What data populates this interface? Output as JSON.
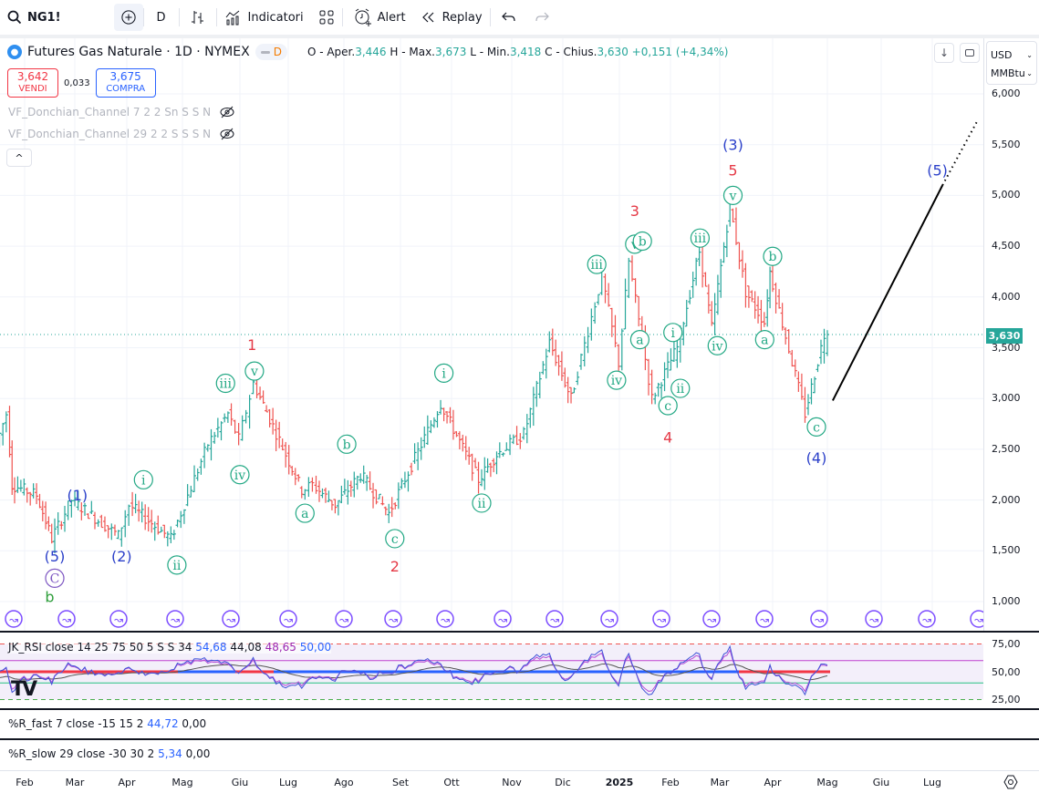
{
  "toolbar": {
    "symbol": "NG1!",
    "interval": "D",
    "indicators_label": "Indicatori",
    "alert_label": "Alert",
    "replay_label": "Replay",
    "icons": [
      "search-icon",
      "add-symbol-icon",
      "bar-style-icon",
      "indicators-icon",
      "layouts-icon",
      "alert-icon",
      "replay-icon",
      "undo-icon",
      "redo-icon"
    ]
  },
  "legend": {
    "title": "Futures Gas Naturale · 1D · NYMEX",
    "badge": "D",
    "open_label": "O - Aper.",
    "open": "3,446",
    "high_label": "H - Max.",
    "high": "3,673",
    "low_label": "L - Min.",
    "low": "3,418",
    "close_label": "C - Chius.",
    "close": "3,630",
    "change": "+0,151 (+4,34%)"
  },
  "trade": {
    "sell_price": "3,642",
    "sell_label": "VENDI",
    "spread": "0,033",
    "buy_price": "3,675",
    "buy_label": "COMPRA"
  },
  "indicators_main": [
    {
      "label": "VF_Donchian_Channel 7 2 2 Sn S S N",
      "visible": false
    },
    {
      "label": "VF_Donchian_Channel 29 2 2 S S S N",
      "visible": false
    }
  ],
  "price_axis": {
    "currency": "USD",
    "unit": "MMBtu",
    "ticks": [
      "6,000",
      "5,500",
      "5,000",
      "4,500",
      "4,000",
      "3,500",
      "3,000",
      "2,500",
      "2,000",
      "1,500",
      "1,000"
    ],
    "last_price": "3,630"
  },
  "time_axis": [
    "Feb",
    "Mar",
    "Apr",
    "Mag",
    "Giu",
    "Lug",
    "Ago",
    "Set",
    "Ott",
    "Nov",
    "Dic",
    "2025",
    "Feb",
    "Mar",
    "Apr",
    "Mag",
    "Giu",
    "Lug"
  ],
  "rsi": {
    "label": "JK_RSI close 14 25 75 50 5 S S 34",
    "v1": "54,68",
    "v2": "44,08",
    "v3": "48,65",
    "v4": "50,00",
    "ticks": [
      "75,00",
      "50,00",
      "25,00"
    ]
  },
  "wr_fast": {
    "label": "%R_fast 7 close -15 15 2",
    "v1": "44,72",
    "v2": "0,00"
  },
  "wr_slow": {
    "label": "%R_slow 29 close -30 30 2",
    "v1": "5,34",
    "v2": "0,00"
  },
  "chart_data": {
    "type": "ohlc",
    "title": "Futures Gas Naturale · 1D · NYMEX",
    "ylim": [
      1000,
      6000
    ],
    "x_months": [
      "Feb",
      "Mar",
      "Apr",
      "Mag",
      "Giu",
      "Lug",
      "Ago",
      "Set",
      "Ott",
      "Nov",
      "Dic",
      "2025",
      "Feb",
      "Mar",
      "Apr",
      "Mag"
    ],
    "price_path": [
      {
        "m": -0.5,
        "p": 2.55
      },
      {
        "m": -0.3,
        "p": 2.85
      },
      {
        "m": -0.2,
        "p": 2.15
      },
      {
        "m": 0.3,
        "p": 2.05
      },
      {
        "m": 0.6,
        "p": 1.62
      },
      {
        "m": 1.0,
        "p": 2.0
      },
      {
        "m": 1.9,
        "p": 1.65
      },
      {
        "m": 2.1,
        "p": 1.95
      },
      {
        "m": 2.85,
        "p": 1.62
      },
      {
        "m": 3.5,
        "p": 2.55
      },
      {
        "m": 3.85,
        "p": 2.85
      },
      {
        "m": 4.05,
        "p": 2.6
      },
      {
        "m": 4.35,
        "p": 3.15
      },
      {
        "m": 5.3,
        "p": 2.1
      },
      {
        "m": 5.5,
        "p": 2.15
      },
      {
        "m": 5.9,
        "p": 1.95
      },
      {
        "m": 6.35,
        "p": 2.25
      },
      {
        "m": 6.85,
        "p": 1.87
      },
      {
        "m": 7.85,
        "p": 2.95
      },
      {
        "m": 8.5,
        "p": 2.2
      },
      {
        "m": 8.8,
        "p": 2.45
      },
      {
        "m": 9.3,
        "p": 2.65
      },
      {
        "m": 9.8,
        "p": 3.55
      },
      {
        "m": 10.2,
        "p": 3.0
      },
      {
        "m": 10.75,
        "p": 4.2
      },
      {
        "m": 11.05,
        "p": 3.35
      },
      {
        "m": 11.25,
        "p": 4.35
      },
      {
        "m": 11.7,
        "p": 3.0
      },
      {
        "m": 12.2,
        "p": 3.5
      },
      {
        "m": 12.65,
        "p": 4.45
      },
      {
        "m": 12.9,
        "p": 3.7
      },
      {
        "m": 13.25,
        "p": 4.9
      },
      {
        "m": 13.55,
        "p": 4.05
      },
      {
        "m": 13.9,
        "p": 3.75
      },
      {
        "m": 14.0,
        "p": 4.25
      },
      {
        "m": 14.65,
        "p": 2.85
      },
      {
        "m": 15.0,
        "p": 3.63
      }
    ],
    "last": {
      "open": 3.446,
      "high": 3.673,
      "low": 3.418,
      "close": 3.63
    },
    "wave_labels": [
      {
        "text": "(5)",
        "m": 0.6,
        "p": 1.45,
        "style": "blue"
      },
      {
        "text": "C",
        "m": 0.6,
        "p": 1.23,
        "style": "purple-circle"
      },
      {
        "text": "b",
        "m": 0.5,
        "p": 1.05,
        "style": "green"
      },
      {
        "text": "(1)",
        "m": 1.05,
        "p": 2.05,
        "style": "blue"
      },
      {
        "text": "(2)",
        "m": 1.9,
        "p": 1.45,
        "style": "blue"
      },
      {
        "text": "i",
        "m": 2.3,
        "p": 2.2,
        "style": "green-circle"
      },
      {
        "text": "ii",
        "m": 2.9,
        "p": 1.36,
        "style": "green-circle"
      },
      {
        "text": "iii",
        "m": 3.75,
        "p": 3.15,
        "style": "green-circle"
      },
      {
        "text": "iv",
        "m": 4.0,
        "p": 2.25,
        "style": "green-circle"
      },
      {
        "text": "v",
        "m": 4.3,
        "p": 3.27,
        "style": "green-circle"
      },
      {
        "text": "1",
        "m": 4.25,
        "p": 3.53,
        "style": "red"
      },
      {
        "text": "a",
        "m": 5.3,
        "p": 1.87,
        "style": "green-circle"
      },
      {
        "text": "b",
        "m": 6.05,
        "p": 2.55,
        "style": "green-circle"
      },
      {
        "text": "c",
        "m": 6.9,
        "p": 1.62,
        "style": "green-circle"
      },
      {
        "text": "2",
        "m": 6.9,
        "p": 1.35,
        "style": "red"
      },
      {
        "text": "i",
        "m": 7.85,
        "p": 3.25,
        "style": "green-circle"
      },
      {
        "text": "ii",
        "m": 8.5,
        "p": 1.97,
        "style": "green-circle"
      },
      {
        "text": "iii",
        "m": 10.6,
        "p": 4.32,
        "style": "green-circle"
      },
      {
        "text": "iv",
        "m": 10.95,
        "p": 3.18,
        "style": "green-circle"
      },
      {
        "text": "v",
        "m": 11.3,
        "p": 4.52,
        "style": "green-circle"
      },
      {
        "text": "b",
        "m": 11.45,
        "p": 4.55,
        "style": "green-circle"
      },
      {
        "text": "3",
        "m": 11.3,
        "p": 4.85,
        "style": "red"
      },
      {
        "text": "a",
        "m": 11.4,
        "p": 3.58,
        "style": "green-circle"
      },
      {
        "text": "i",
        "m": 12.05,
        "p": 3.65,
        "style": "green-circle"
      },
      {
        "text": "ii",
        "m": 12.2,
        "p": 3.1,
        "style": "green-circle"
      },
      {
        "text": "c",
        "m": 11.95,
        "p": 2.93,
        "style": "green-circle"
      },
      {
        "text": "4",
        "m": 11.95,
        "p": 2.62,
        "style": "red"
      },
      {
        "text": "iii",
        "m": 12.6,
        "p": 4.58,
        "style": "green-circle"
      },
      {
        "text": "iv",
        "m": 12.95,
        "p": 3.52,
        "style": "green-circle"
      },
      {
        "text": "v",
        "m": 13.25,
        "p": 5.0,
        "style": "green-circle"
      },
      {
        "text": "5",
        "m": 13.25,
        "p": 5.25,
        "style": "red"
      },
      {
        "text": "(3)",
        "m": 13.25,
        "p": 5.5,
        "style": "blue"
      },
      {
        "text": "b",
        "m": 14.0,
        "p": 4.4,
        "style": "green-circle"
      },
      {
        "text": "a",
        "m": 13.85,
        "p": 3.58,
        "style": "green-circle"
      },
      {
        "text": "c",
        "m": 14.8,
        "p": 2.72,
        "style": "green-circle"
      },
      {
        "text": "(4)",
        "m": 14.8,
        "p": 2.42,
        "style": "blue"
      },
      {
        "text": "(5)",
        "m": 17.1,
        "p": 5.25,
        "style": "blue"
      }
    ],
    "projection": {
      "from": {
        "m": 15.1,
        "p": 2.98
      },
      "to": {
        "m": 17.2,
        "p": 5.1
      },
      "extend_to": {
        "m": 17.9,
        "p": 5.75
      }
    },
    "rsi_axis": [
      25,
      75
    ],
    "rsi_levels": {
      "upper": 75,
      "mid": 50,
      "lower": 25,
      "band_high": 60,
      "band_low": 40
    }
  }
}
